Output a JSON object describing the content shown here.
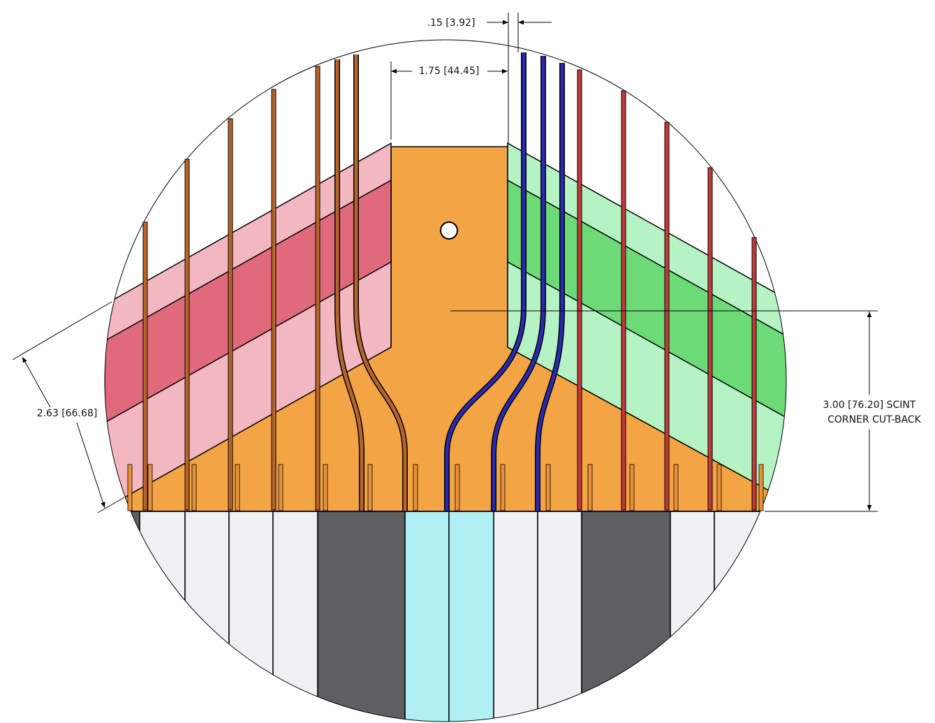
{
  "dimensions": {
    "wall_gap": ".15 [3.92]",
    "center_width": "1.75 [44.45]",
    "cut_back": [
      "3.00 [76.20] SCINT",
      "CORNER CUT-BACK"
    ],
    "diagonal": "2.63 [66.68]"
  }
}
